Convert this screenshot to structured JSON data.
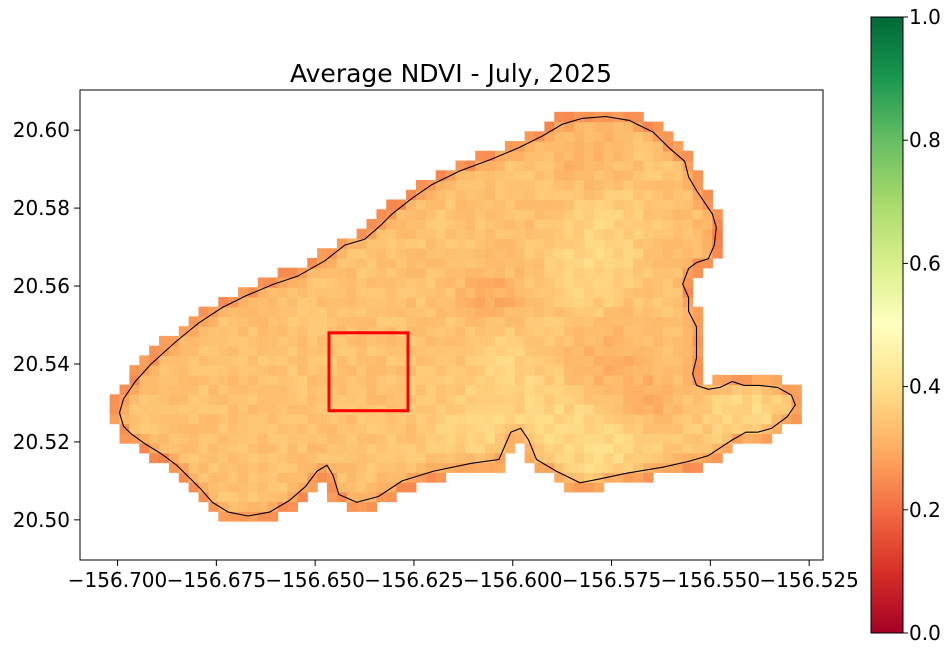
{
  "chart_data": {
    "type": "heatmap",
    "title": "Average NDVI - July, 2025",
    "xlabel": "",
    "ylabel": "",
    "xlim": [
      -156.7095,
      -156.5215
    ],
    "ylim": [
      20.4897,
      20.6103
    ],
    "x_ticks": [
      -156.7,
      -156.675,
      -156.65,
      -156.625,
      -156.6,
      -156.575,
      -156.55,
      -156.525
    ],
    "x_tick_labels": [
      "−156.700",
      "−156.675",
      "−156.650",
      "−156.625",
      "−156.600",
      "−156.575",
      "−156.550",
      "−156.525"
    ],
    "y_ticks": [
      20.5,
      20.52,
      20.54,
      20.56,
      20.58,
      20.6
    ],
    "y_tick_labels": [
      "20.50",
      "20.52",
      "20.54",
      "20.56",
      "20.58",
      "20.60"
    ],
    "colorbar": {
      "colormap": "RdYlGn",
      "range": [
        0.0,
        1.0
      ],
      "ticks": [
        0.0,
        0.2,
        0.4,
        0.6,
        0.8,
        1.0
      ],
      "tick_labels": [
        "0.0",
        "0.2",
        "0.4",
        "0.6",
        "0.8",
        "1.0"
      ]
    },
    "grid_resolution": 0.0025,
    "region_outline": [
      [
        -156.6985,
        20.524
      ],
      [
        -156.6965,
        20.522
      ],
      [
        -156.693,
        20.5195
      ],
      [
        -156.689,
        20.517
      ],
      [
        -156.685,
        20.514
      ],
      [
        -156.682,
        20.511
      ],
      [
        -156.679,
        20.508
      ],
      [
        -156.676,
        20.5045
      ],
      [
        -156.672,
        20.502
      ],
      [
        -156.667,
        20.501
      ],
      [
        -156.6615,
        20.502
      ],
      [
        -156.6565,
        20.505
      ],
      [
        -156.6525,
        20.5085
      ],
      [
        -156.6495,
        20.5125
      ],
      [
        -156.647,
        20.514
      ],
      [
        -156.6455,
        20.5115
      ],
      [
        -156.644,
        20.5065
      ],
      [
        -156.6395,
        20.5045
      ],
      [
        -156.634,
        20.506
      ],
      [
        -156.628,
        20.51
      ],
      [
        -156.62,
        20.5125
      ],
      [
        -156.6105,
        20.5145
      ],
      [
        -156.6035,
        20.5155
      ],
      [
        -156.6005,
        20.5225
      ],
      [
        -156.598,
        20.5235
      ],
      [
        -156.596,
        20.5205
      ],
      [
        -156.594,
        20.5155
      ],
      [
        -156.589,
        20.5125
      ],
      [
        -156.583,
        20.5095
      ],
      [
        -156.578,
        20.5105
      ],
      [
        -156.571,
        20.512
      ],
      [
        -156.562,
        20.5135
      ],
      [
        -156.5555,
        20.515
      ],
      [
        -156.5505,
        20.5165
      ],
      [
        -156.5475,
        20.5185
      ],
      [
        -156.5445,
        20.5205
      ],
      [
        -156.541,
        20.5225
      ],
      [
        -156.538,
        20.5225
      ],
      [
        -156.5345,
        20.5235
      ],
      [
        -156.5305,
        20.5265
      ],
      [
        -156.5285,
        20.5295
      ],
      [
        -156.5295,
        20.532
      ],
      [
        -156.533,
        20.534
      ],
      [
        -156.5375,
        20.5345
      ],
      [
        -156.5415,
        20.5345
      ],
      [
        -156.5445,
        20.5355
      ],
      [
        -156.5475,
        20.534
      ],
      [
        -156.5505,
        20.5335
      ],
      [
        -156.5535,
        20.5345
      ],
      [
        -156.5545,
        20.5375
      ],
      [
        -156.5535,
        20.5415
      ],
      [
        -156.5535,
        20.5455
      ],
      [
        -156.5535,
        20.5495
      ],
      [
        -156.5555,
        20.5535
      ],
      [
        -156.5555,
        20.557
      ],
      [
        -156.557,
        20.5605
      ],
      [
        -156.5555,
        20.5645
      ],
      [
        -156.5535,
        20.566
      ],
      [
        -156.5505,
        20.567
      ],
      [
        -156.549,
        20.5705
      ],
      [
        -156.5485,
        20.575
      ],
      [
        -156.5495,
        20.5785
      ],
      [
        -156.5515,
        20.5815
      ],
      [
        -156.5535,
        20.5845
      ],
      [
        -156.5555,
        20.588
      ],
      [
        -156.5565,
        20.592
      ],
      [
        -156.5605,
        20.5955
      ],
      [
        -156.5645,
        20.5995
      ],
      [
        -156.5705,
        20.6025
      ],
      [
        -156.5765,
        20.6035
      ],
      [
        -156.5825,
        20.603
      ],
      [
        -156.5875,
        20.6015
      ],
      [
        -156.5925,
        20.5985
      ],
      [
        -156.5985,
        20.5955
      ],
      [
        -156.6055,
        20.5925
      ],
      [
        -156.6135,
        20.5895
      ],
      [
        -156.6205,
        20.586
      ],
      [
        -156.6255,
        20.5825
      ],
      [
        -156.6305,
        20.5785
      ],
      [
        -156.6335,
        20.5755
      ],
      [
        -156.6375,
        20.572
      ],
      [
        -156.6425,
        20.5705
      ],
      [
        -156.6475,
        20.5665
      ],
      [
        -156.6545,
        20.5625
      ],
      [
        -156.6605,
        20.5605
      ],
      [
        -156.6675,
        20.5575
      ],
      [
        -156.6735,
        20.5545
      ],
      [
        -156.6795,
        20.5505
      ],
      [
        -156.6855,
        20.5455
      ],
      [
        -156.6915,
        20.54
      ],
      [
        -156.6955,
        20.5355
      ],
      [
        -156.6985,
        20.531
      ],
      [
        -156.6995,
        20.5275
      ],
      [
        -156.6985,
        20.524
      ]
    ],
    "annotations": [
      {
        "shape": "rectangle",
        "color": "#ff0000",
        "x_range": [
          -156.6465,
          -156.6265
        ],
        "y_range": [
          20.528,
          20.548
        ]
      }
    ],
    "ndvi_hotspots": [
      {
        "lon": -156.58,
        "lat": 20.565,
        "ndvi": 0.42,
        "radius": 0.009
      },
      {
        "lon": -156.575,
        "lat": 20.575,
        "ndvi": 0.4,
        "radius": 0.008
      },
      {
        "lon": -156.59,
        "lat": 20.522,
        "ndvi": 0.42,
        "radius": 0.012
      },
      {
        "lon": -156.575,
        "lat": 20.519,
        "ndvi": 0.42,
        "radius": 0.011
      },
      {
        "lon": -156.54,
        "lat": 20.527,
        "ndvi": 0.42,
        "radius": 0.01
      },
      {
        "lon": -156.6,
        "lat": 20.54,
        "ndvi": 0.4,
        "radius": 0.009
      },
      {
        "lon": -156.61,
        "lat": 20.525,
        "ndvi": 0.4,
        "radius": 0.01
      },
      {
        "lon": -156.575,
        "lat": 20.54,
        "ndvi": 0.26,
        "radius": 0.009
      },
      {
        "lon": -156.566,
        "lat": 20.53,
        "ndvi": 0.25,
        "radius": 0.006
      },
      {
        "lon": -156.605,
        "lat": 20.557,
        "ndvi": 0.25,
        "radius": 0.006
      },
      {
        "lon": -156.582,
        "lat": 20.595,
        "ndvi": 0.28,
        "radius": 0.007
      },
      {
        "lon": -156.55,
        "lat": 20.575,
        "ndvi": 0.3,
        "radius": 0.006
      }
    ],
    "ndvi_background": 0.34
  }
}
